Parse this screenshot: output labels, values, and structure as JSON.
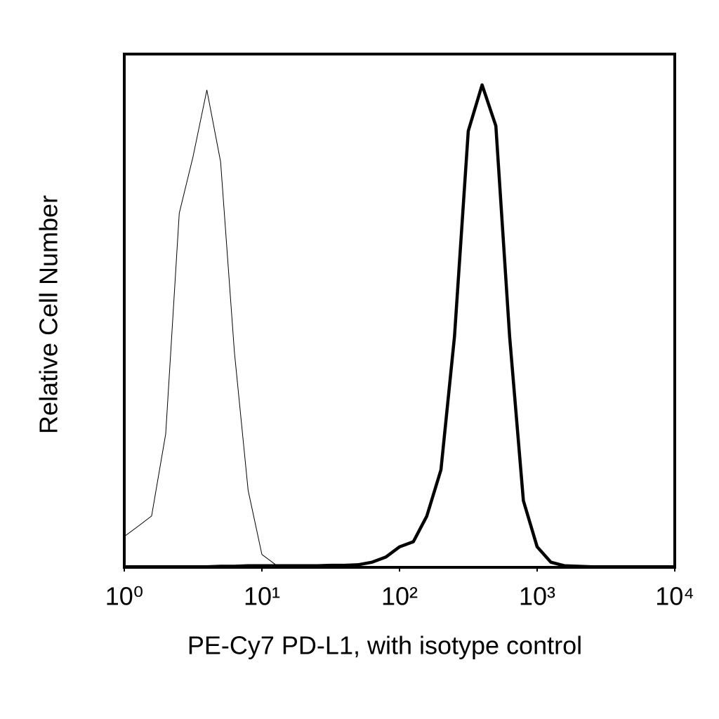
{
  "chart_data": {
    "type": "line",
    "x_label": "PE-Cy7 PD-L1, with isotype control",
    "y_label": "Relative Cell Number",
    "xscale": "log",
    "xlim": [
      1,
      10000
    ],
    "xticks": [
      {
        "value": 1,
        "label": "10⁰"
      },
      {
        "value": 10,
        "label": "10¹"
      },
      {
        "value": 100,
        "label": "10²"
      },
      {
        "value": 1000,
        "label": "10³"
      },
      {
        "value": 10000,
        "label": "10⁴"
      }
    ],
    "ylim": [
      0,
      100
    ],
    "x": [
      1,
      1.26,
      1.58,
      2,
      2.51,
      3.16,
      3.98,
      5.01,
      6.31,
      7.94,
      10,
      12.6,
      15.8,
      20,
      25.1,
      31.6,
      39.8,
      50.1,
      63.1,
      79.4,
      100,
      126,
      158,
      200,
      251,
      316,
      398,
      501,
      631,
      794,
      1000,
      1259,
      1585,
      1995,
      2512,
      3162,
      3981,
      5012,
      6310,
      7943,
      10000
    ],
    "series": [
      {
        "color": "#000000",
        "width": 1,
        "values": [
          6,
          8,
          10,
          26,
          69,
          80,
          93,
          79,
          42,
          15,
          2.5,
          0.5,
          0.2,
          0.1,
          0.1,
          0.1,
          0.1,
          0.1,
          0.1,
          0.1,
          0.1,
          0.1,
          0.1,
          0.1,
          0.1,
          0.1,
          0.1,
          0.1,
          0.1,
          0.1,
          0.1,
          0.1,
          0.1,
          0.1,
          0.1,
          0.1,
          0.1,
          0.1,
          0.1,
          0.1,
          0.1
        ]
      },
      {
        "color": "#000000",
        "width": 4.5,
        "values": [
          0.1,
          0.1,
          0.1,
          0.1,
          0.1,
          0.1,
          0.1,
          0.2,
          0.2,
          0.3,
          0.3,
          0.3,
          0.3,
          0.3,
          0.3,
          0.4,
          0.4,
          0.5,
          1,
          2,
          4,
          5,
          10,
          19,
          45,
          85,
          94,
          86,
          45,
          13,
          4,
          1,
          0.3,
          0.2,
          0.1,
          0.1,
          0.1,
          0.1,
          0.1,
          0.1,
          0.1
        ]
      }
    ]
  }
}
